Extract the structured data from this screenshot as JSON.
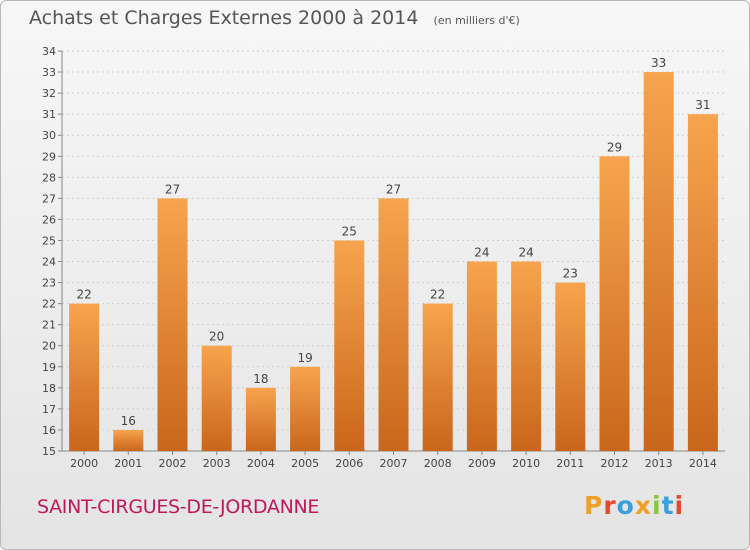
{
  "header": {
    "title": "Achats et Charges Externes 2000 à 2014",
    "unit": "(en milliers d'€)"
  },
  "footer": {
    "commune": "SAINT-CIRGUES-DE-JORDANNE",
    "logo_letters": [
      "P",
      "r",
      "o",
      "x",
      "i",
      "t",
      "i"
    ]
  },
  "colors": {
    "bar_top": "#f7a44e",
    "bar_bottom": "#c9661b",
    "commune": "#c2185b",
    "grid": "#d0d0d0"
  },
  "chart_data": {
    "type": "bar",
    "title": "Achats et Charges Externes 2000 à 2014",
    "subtitle": "(en milliers d'€)",
    "categories": [
      "2000",
      "2001",
      "2002",
      "2003",
      "2004",
      "2005",
      "2006",
      "2007",
      "2008",
      "2009",
      "2010",
      "2011",
      "2012",
      "2013",
      "2014"
    ],
    "values": [
      22,
      16,
      27,
      20,
      18,
      19,
      25,
      27,
      22,
      24,
      24,
      23,
      29,
      33,
      31
    ],
    "ylim": [
      15,
      34
    ],
    "yticks": [
      15,
      16,
      17,
      18,
      19,
      20,
      21,
      22,
      23,
      24,
      25,
      26,
      27,
      28,
      29,
      30,
      31,
      32,
      33,
      34
    ],
    "grid": "dashed horizontal",
    "legend": "none"
  }
}
